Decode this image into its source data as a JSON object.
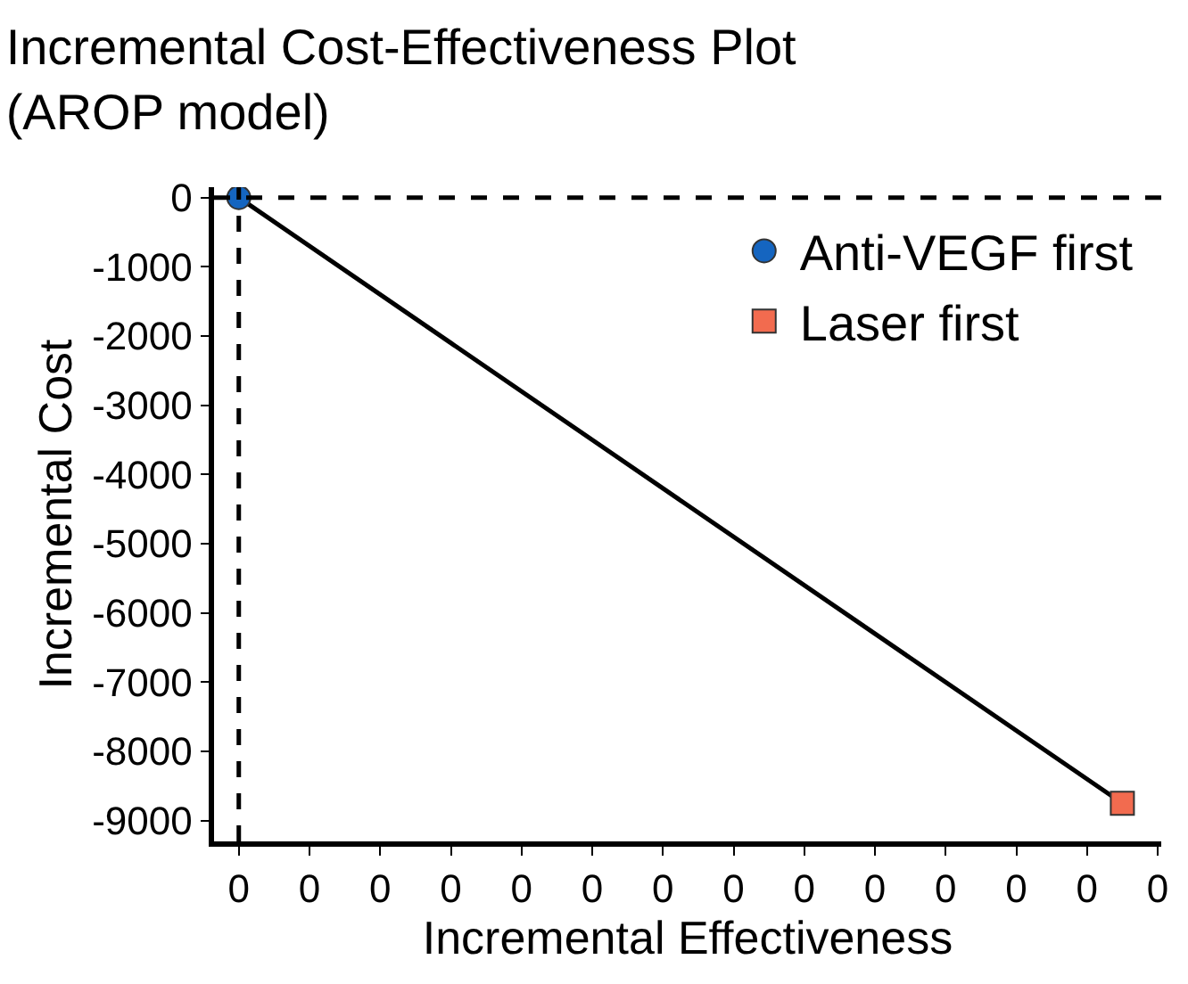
{
  "chart_data": {
    "type": "scatter",
    "title": "Incremental Cost-Effectiveness Plot\n(AROP model)",
    "xlabel": "Incremental Effectiveness",
    "ylabel": "Incremental Cost",
    "categories": [
      "0",
      null,
      "0",
      null,
      "0",
      null,
      "0",
      null,
      "0",
      null,
      "0",
      null,
      "0",
      null,
      "0",
      null,
      "0",
      null,
      "0",
      null,
      "0",
      null,
      "0",
      null,
      "0",
      null,
      "0"
    ],
    "series": [
      {
        "type": "line",
        "color": "#000000",
        "values": [
          0,
          null,
          null,
          null,
          null,
          null,
          null,
          null,
          null,
          null,
          null,
          null,
          null,
          null,
          null,
          null,
          null,
          null,
          null,
          null,
          null,
          null,
          null,
          null,
          null,
          -8750,
          null
        ],
        "marker": "none",
        "line_style": "solid"
      },
      {
        "name": "Anti-VEGF first",
        "color": "#1565c0",
        "values": [
          0,
          null,
          null,
          null,
          null,
          null,
          null,
          null,
          null,
          null,
          null,
          null,
          null,
          null,
          null,
          null,
          null,
          null,
          null,
          null,
          null,
          null,
          null,
          null,
          null,
          null,
          null
        ],
        "marker": "circle"
      },
      {
        "name": "Laser first",
        "color": "#f26b4f",
        "values": [
          null,
          null,
          null,
          null,
          null,
          null,
          null,
          null,
          null,
          null,
          null,
          null,
          null,
          null,
          null,
          null,
          null,
          null,
          null,
          null,
          null,
          null,
          null,
          null,
          null,
          -8750,
          null
        ],
        "marker": "square"
      }
    ],
    "ylim": [
      -9300,
      150
    ],
    "yticks": [
      0,
      -1000,
      -2000,
      -3000,
      -4000,
      -5000,
      -6000,
      -7000,
      -8000,
      -9000
    ],
    "ref_lines": [
      {
        "axis": "x",
        "value": "0",
        "line_style": "dashed",
        "color": "#000000"
      },
      {
        "axis": "y",
        "value": 0,
        "line_style": "dashed",
        "color": "#000000"
      }
    ],
    "grid": false,
    "legend": "top right"
  }
}
